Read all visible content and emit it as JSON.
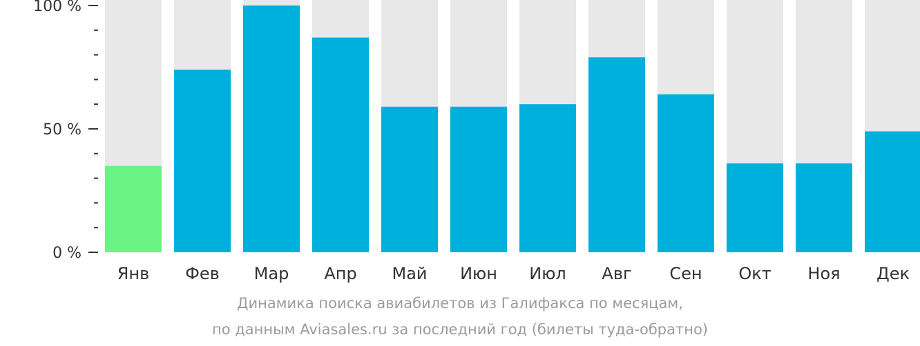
{
  "chart_data": {
    "type": "bar",
    "categories": [
      "Янв",
      "Фев",
      "Мар",
      "Апр",
      "Май",
      "Июн",
      "Июл",
      "Авг",
      "Сен",
      "Окт",
      "Ноя",
      "Дек"
    ],
    "values": [
      35,
      74,
      100,
      87,
      59,
      59,
      60,
      79,
      64,
      36,
      36,
      49
    ],
    "ylim": [
      0,
      100
    ],
    "yticks": [
      {
        "value": 0,
        "label": "0 %"
      },
      {
        "value": 50,
        "label": "50 %"
      },
      {
        "value": 100,
        "label": "100 %"
      }
    ],
    "minor_tick_step": 10,
    "highlight_index": 0,
    "colors": {
      "bar": "#00b0dc",
      "highlight": "#6bf384",
      "background_bar": "#e8e8e8",
      "axis": "#333333"
    },
    "grid": false,
    "legend": "none"
  },
  "caption": {
    "line1": "Динамика поиска авиабилетов из Галифакса по месяцам,",
    "line2": "по данным Aviasales.ru за последний год (билеты туда-обратно)"
  }
}
